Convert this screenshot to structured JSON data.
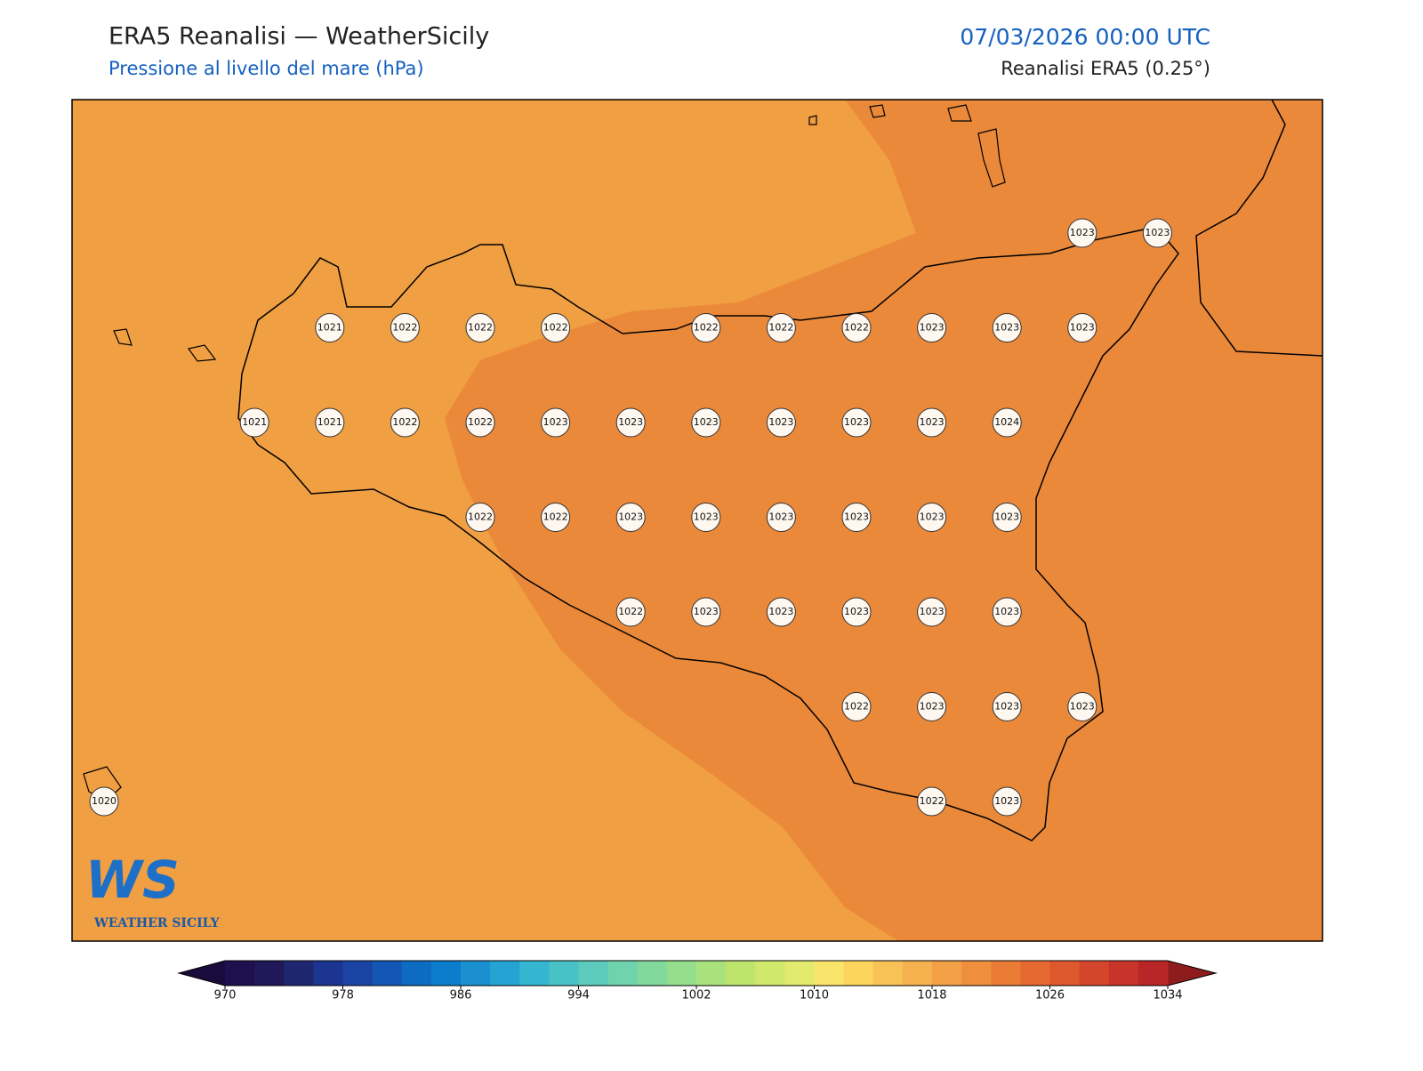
{
  "header": {
    "title": "ERA5 Reanalisi — WeatherSicily",
    "subtitle": "Pressione al livello del mare (hPa)",
    "datetime": "07/03/2026 00:00 UTC",
    "source": "Reanalisi ERA5 (0.25°)"
  },
  "grid_values": [
    [
      null,
      null,
      null,
      null,
      null,
      null,
      null,
      null,
      null,
      null,
      null,
      null,
      null,
      1023,
      1023
    ],
    [
      null,
      null,
      null,
      1021,
      1022,
      1022,
      1022,
      null,
      1022,
      1022,
      1022,
      1023,
      1023,
      1023,
      null
    ],
    [
      null,
      null,
      1021,
      1021,
      1022,
      1022,
      1023,
      1023,
      1023,
      1023,
      1023,
      1023,
      1024,
      null,
      null
    ],
    [
      null,
      null,
      null,
      null,
      null,
      1022,
      1022,
      1023,
      1023,
      1023,
      1023,
      1023,
      1023,
      null,
      null
    ],
    [
      null,
      null,
      null,
      null,
      null,
      null,
      null,
      1022,
      1023,
      1023,
      1023,
      1023,
      1023,
      null,
      null
    ],
    [
      null,
      null,
      null,
      null,
      null,
      null,
      null,
      null,
      null,
      null,
      1022,
      1023,
      1023,
      1023,
      null
    ],
    [
      1020,
      null,
      null,
      null,
      null,
      null,
      null,
      null,
      null,
      null,
      null,
      1022,
      1023,
      null,
      null
    ]
  ],
  "colorbar": {
    "lim": [
      970,
      1034
    ],
    "ticks": [
      970,
      978,
      986,
      994,
      1002,
      1010,
      1018,
      1026,
      1034
    ],
    "colors": [
      "#1e0f4e",
      "#201858",
      "#1e2670",
      "#1b3590",
      "#1a44a3",
      "#1456b3",
      "#0d6bc2",
      "#0b7dcc",
      "#1a90d0",
      "#25a3d2",
      "#35b6d0",
      "#48c2c5",
      "#5ccbbb",
      "#6fd3ad",
      "#82d99c",
      "#95df8c",
      "#a9e27c",
      "#bde56e",
      "#d0e86b",
      "#e2eb6d",
      "#f9e56b",
      "#fcd45e",
      "#f8c257",
      "#f4b14e",
      "#f2a045",
      "#ef8e3d",
      "#eb7c36",
      "#e56a31",
      "#de582d",
      "#d4462b",
      "#c8342a",
      "#b82628"
    ],
    "under_color": "#1a0b3d",
    "over_color": "#8e1c1c"
  },
  "logo": {
    "mark": "WS",
    "text": "WEATHER SICILY"
  }
}
